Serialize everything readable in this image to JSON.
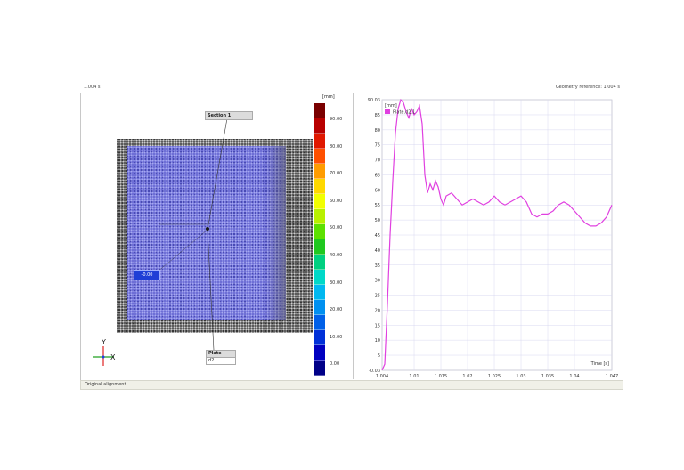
{
  "header": {
    "left_text": "1.004 s",
    "right_text": "Geometry reference: 1.004 s"
  },
  "status": {
    "text": "Original alignment"
  },
  "image_view": {
    "section_label": "Section 1",
    "plate_label": "Plate",
    "plate_value": "d2",
    "value_tag": "-0.00",
    "axis_y": "Y",
    "axis_x": "X"
  },
  "colorbar": {
    "unit": "[mm]",
    "ticks": [
      "90.00",
      "80.00",
      "70.00",
      "60.00",
      "50.00",
      "40.00",
      "30.00",
      "20.00",
      "10.00",
      "0.00"
    ],
    "colors": [
      "#7a0000",
      "#b80000",
      "#e01800",
      "#ff5000",
      "#ff9c00",
      "#ffd800",
      "#f2ff00",
      "#b8f000",
      "#5ce000",
      "#20c820",
      "#00d080",
      "#00d8c8",
      "#00b8f0",
      "#0090f0",
      "#0060e8",
      "#0030d8",
      "#0000c0",
      "#000088"
    ]
  },
  "chart_data": {
    "type": "line",
    "ylabel": "[mm]",
    "xlabel": "Time [s]",
    "xlim": [
      1.004,
      1.047
    ],
    "ylim": [
      -0.03,
      90.03
    ],
    "x_ticks": [
      "1.004",
      "1.01",
      "1.015",
      "1.02",
      "1.025",
      "1.03",
      "1.035",
      "1.04",
      "1.047"
    ],
    "y_ticks": [
      "-0.03",
      "5",
      "10",
      "15",
      "20",
      "25",
      "30",
      "35",
      "40",
      "45",
      "50",
      "55",
      "60",
      "65",
      "70",
      "75",
      "80",
      "85",
      "90.03"
    ],
    "series": [
      {
        "name": "Plate.d2.1",
        "color": "#e040e0",
        "x": [
          1.004,
          1.0045,
          1.005,
          1.0055,
          1.006,
          1.0065,
          1.007,
          1.0075,
          1.008,
          1.0085,
          1.009,
          1.0095,
          1.01,
          1.0105,
          1.011,
          1.0115,
          1.012,
          1.0125,
          1.013,
          1.0135,
          1.014,
          1.0145,
          1.015,
          1.0155,
          1.016,
          1.017,
          1.018,
          1.019,
          1.02,
          1.021,
          1.022,
          1.023,
          1.024,
          1.025,
          1.026,
          1.027,
          1.028,
          1.029,
          1.03,
          1.031,
          1.032,
          1.033,
          1.034,
          1.035,
          1.036,
          1.037,
          1.038,
          1.039,
          1.04,
          1.041,
          1.042,
          1.043,
          1.044,
          1.045,
          1.046,
          1.047
        ],
        "values": [
          0,
          2,
          22,
          45,
          63,
          79,
          87,
          90,
          89,
          86,
          84,
          87,
          85,
          86,
          88,
          82,
          65,
          59,
          62,
          60,
          63,
          61,
          57,
          55,
          58,
          59,
          57,
          55,
          56,
          57,
          56,
          55,
          56,
          58,
          56,
          55,
          56,
          57,
          58,
          56,
          52,
          51,
          52,
          52,
          53,
          55,
          56,
          55,
          53,
          51,
          49,
          48,
          48,
          49,
          51,
          55
        ]
      }
    ],
    "legend": "top-left",
    "grid": true
  }
}
